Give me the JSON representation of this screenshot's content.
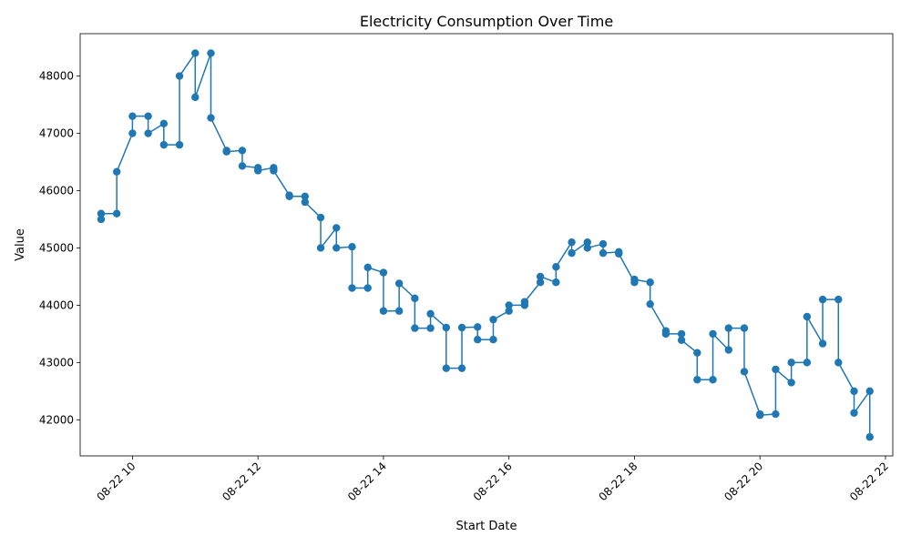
{
  "chart_data": {
    "type": "line",
    "title": "Electricity Consumption Over Time",
    "xlabel": "Start Date",
    "ylabel": "Value",
    "x_axis": {
      "kind": "datetime",
      "start": "2024-08-22T09:30",
      "end": "2024-08-22T21:45",
      "xlim": [
        "2024-08-22T09:10",
        "2024-08-22T22:07"
      ],
      "ticks": [
        {
          "time": "2024-08-22T10:00",
          "label": "08-22 10"
        },
        {
          "time": "2024-08-22T12:00",
          "label": "08-22 12"
        },
        {
          "time": "2024-08-22T14:00",
          "label": "08-22 14"
        },
        {
          "time": "2024-08-22T16:00",
          "label": "08-22 16"
        },
        {
          "time": "2024-08-22T18:00",
          "label": "08-22 18"
        },
        {
          "time": "2024-08-22T20:00",
          "label": "08-22 20"
        },
        {
          "time": "2024-08-22T22:00",
          "label": "08-22 22"
        }
      ],
      "tick_label_rotation": 45
    },
    "y_axis": {
      "ylim": [
        41370,
        48740
      ],
      "ticks": [
        42000,
        43000,
        44000,
        45000,
        46000,
        47000,
        48000
      ]
    },
    "grid": false,
    "legend": "none",
    "series": [
      {
        "color": "#1f77b4",
        "marker": "circle",
        "points": [
          [
            "2024-08-22T09:30",
            45500
          ],
          [
            "2024-08-22T09:30",
            45600
          ],
          [
            "2024-08-22T09:45",
            45600
          ],
          [
            "2024-08-22T09:45",
            46330
          ],
          [
            "2024-08-22T10:00",
            47000
          ],
          [
            "2024-08-22T10:00",
            47300
          ],
          [
            "2024-08-22T10:15",
            47300
          ],
          [
            "2024-08-22T10:15",
            47000
          ],
          [
            "2024-08-22T10:30",
            47170
          ],
          [
            "2024-08-22T10:30",
            46800
          ],
          [
            "2024-08-22T10:45",
            46800
          ],
          [
            "2024-08-22T10:45",
            48000
          ],
          [
            "2024-08-22T11:00",
            48400
          ],
          [
            "2024-08-22T11:00",
            47630
          ],
          [
            "2024-08-22T11:15",
            48400
          ],
          [
            "2024-08-22T11:15",
            47270
          ],
          [
            "2024-08-22T11:30",
            46700
          ],
          [
            "2024-08-22T11:30",
            46680
          ],
          [
            "2024-08-22T11:45",
            46700
          ],
          [
            "2024-08-22T11:45",
            46430
          ],
          [
            "2024-08-22T12:00",
            46400
          ],
          [
            "2024-08-22T12:00",
            46350
          ],
          [
            "2024-08-22T12:15",
            46400
          ],
          [
            "2024-08-22T12:15",
            46350
          ],
          [
            "2024-08-22T12:30",
            45920
          ],
          [
            "2024-08-22T12:30",
            45900
          ],
          [
            "2024-08-22T12:45",
            45900
          ],
          [
            "2024-08-22T12:45",
            45800
          ],
          [
            "2024-08-22T13:00",
            45530
          ],
          [
            "2024-08-22T13:00",
            45000
          ],
          [
            "2024-08-22T13:15",
            45350
          ],
          [
            "2024-08-22T13:15",
            45000
          ],
          [
            "2024-08-22T13:30",
            45020
          ],
          [
            "2024-08-22T13:30",
            44300
          ],
          [
            "2024-08-22T13:45",
            44300
          ],
          [
            "2024-08-22T13:45",
            44660
          ],
          [
            "2024-08-22T14:00",
            44570
          ],
          [
            "2024-08-22T14:00",
            43900
          ],
          [
            "2024-08-22T14:15",
            43900
          ],
          [
            "2024-08-22T14:15",
            44380
          ],
          [
            "2024-08-22T14:30",
            44120
          ],
          [
            "2024-08-22T14:30",
            43600
          ],
          [
            "2024-08-22T14:45",
            43600
          ],
          [
            "2024-08-22T14:45",
            43850
          ],
          [
            "2024-08-22T15:00",
            43610
          ],
          [
            "2024-08-22T15:00",
            42900
          ],
          [
            "2024-08-22T15:15",
            42900
          ],
          [
            "2024-08-22T15:15",
            43610
          ],
          [
            "2024-08-22T15:30",
            43620
          ],
          [
            "2024-08-22T15:30",
            43400
          ],
          [
            "2024-08-22T15:45",
            43400
          ],
          [
            "2024-08-22T15:45",
            43750
          ],
          [
            "2024-08-22T16:00",
            43900
          ],
          [
            "2024-08-22T16:00",
            44000
          ],
          [
            "2024-08-22T16:15",
            44000
          ],
          [
            "2024-08-22T16:15",
            44060
          ],
          [
            "2024-08-22T16:30",
            44400
          ],
          [
            "2024-08-22T16:30",
            44500
          ],
          [
            "2024-08-22T16:45",
            44400
          ],
          [
            "2024-08-22T16:45",
            44670
          ],
          [
            "2024-08-22T17:00",
            45100
          ],
          [
            "2024-08-22T17:00",
            44910
          ],
          [
            "2024-08-22T17:15",
            45100
          ],
          [
            "2024-08-22T17:15",
            45000
          ],
          [
            "2024-08-22T17:30",
            45070
          ],
          [
            "2024-08-22T17:30",
            44910
          ],
          [
            "2024-08-22T17:45",
            44930
          ],
          [
            "2024-08-22T17:45",
            44900
          ],
          [
            "2024-08-22T18:00",
            44400
          ],
          [
            "2024-08-22T18:00",
            44450
          ],
          [
            "2024-08-22T18:15",
            44400
          ],
          [
            "2024-08-22T18:15",
            44020
          ],
          [
            "2024-08-22T18:30",
            43550
          ],
          [
            "2024-08-22T18:30",
            43500
          ],
          [
            "2024-08-22T18:45",
            43500
          ],
          [
            "2024-08-22T18:45",
            43390
          ],
          [
            "2024-08-22T19:00",
            43170
          ],
          [
            "2024-08-22T19:00",
            42700
          ],
          [
            "2024-08-22T19:15",
            42700
          ],
          [
            "2024-08-22T19:15",
            43500
          ],
          [
            "2024-08-22T19:30",
            43220
          ],
          [
            "2024-08-22T19:30",
            43600
          ],
          [
            "2024-08-22T19:45",
            43600
          ],
          [
            "2024-08-22T19:45",
            42840
          ],
          [
            "2024-08-22T20:00",
            42100
          ],
          [
            "2024-08-22T20:00",
            42080
          ],
          [
            "2024-08-22T20:15",
            42100
          ],
          [
            "2024-08-22T20:15",
            42880
          ],
          [
            "2024-08-22T20:30",
            42650
          ],
          [
            "2024-08-22T20:30",
            43000
          ],
          [
            "2024-08-22T20:45",
            43000
          ],
          [
            "2024-08-22T20:45",
            43800
          ],
          [
            "2024-08-22T21:00",
            43330
          ],
          [
            "2024-08-22T21:00",
            44100
          ],
          [
            "2024-08-22T21:15",
            44100
          ],
          [
            "2024-08-22T21:15",
            43000
          ],
          [
            "2024-08-22T21:30",
            42500
          ],
          [
            "2024-08-22T21:30",
            42120
          ],
          [
            "2024-08-22T21:45",
            42500
          ],
          [
            "2024-08-22T21:45",
            41700
          ]
        ]
      }
    ]
  }
}
